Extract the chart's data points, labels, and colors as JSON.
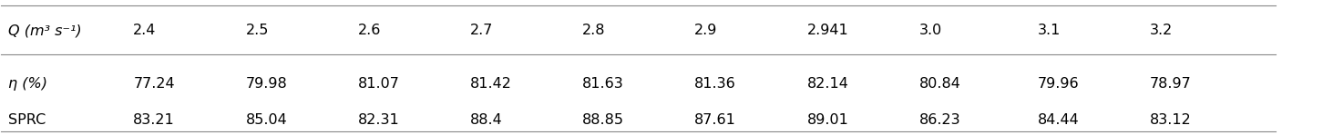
{
  "header_label": "Q (m³ s⁻¹)",
  "q_values": [
    "2.4",
    "2.5",
    "2.6",
    "2.7",
    "2.8",
    "2.9",
    "2.941",
    "3.0",
    "3.1",
    "3.2"
  ],
  "row1_label": "η (%)",
  "row1_values": [
    "77.24",
    "79.98",
    "81.07",
    "81.42",
    "81.63",
    "81.36",
    "82.14",
    "80.84",
    "79.96",
    "78.97"
  ],
  "row2_label": "SPRC",
  "row2_values": [
    "83.21",
    "85.04",
    "82.31",
    "88.4",
    "88.85",
    "87.61",
    "89.01",
    "86.23",
    "84.44",
    "83.12"
  ],
  "background_color": "#ffffff",
  "text_color": "#000000",
  "line_color": "#888888",
  "font_size": 11.5
}
